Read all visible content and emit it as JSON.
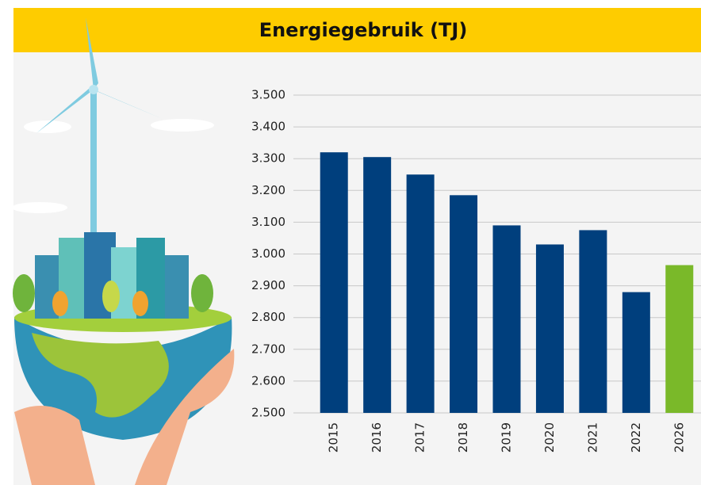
{
  "chart_data": {
    "type": "bar",
    "title": "Energiegebruik (TJ)",
    "categories": [
      "2015",
      "2016",
      "2017",
      "2018",
      "2019",
      "2020",
      "2021",
      "2022",
      "2026"
    ],
    "values": [
      3320,
      3305,
      3250,
      3185,
      3090,
      3030,
      3075,
      2880,
      2965
    ],
    "colors": [
      "#003f7d",
      "#003f7d",
      "#003f7d",
      "#003f7d",
      "#003f7d",
      "#003f7d",
      "#003f7d",
      "#003f7d",
      "#7ab929"
    ],
    "ylim": [
      2500,
      3500
    ],
    "yticks": [
      {
        "value": 2500,
        "label": "2.500"
      },
      {
        "value": 2600,
        "label": "2.600"
      },
      {
        "value": 2700,
        "label": "2.700"
      },
      {
        "value": 2800,
        "label": "2.800"
      },
      {
        "value": 2900,
        "label": "2.900"
      },
      {
        "value": 3000,
        "label": "3.000"
      },
      {
        "value": 3100,
        "label": "3.100"
      },
      {
        "value": 3200,
        "label": "3.200"
      },
      {
        "value": 3300,
        "label": "3.300"
      },
      {
        "value": 3400,
        "label": "3.400"
      },
      {
        "value": 3500,
        "label": "3.500"
      }
    ],
    "grid": true
  }
}
